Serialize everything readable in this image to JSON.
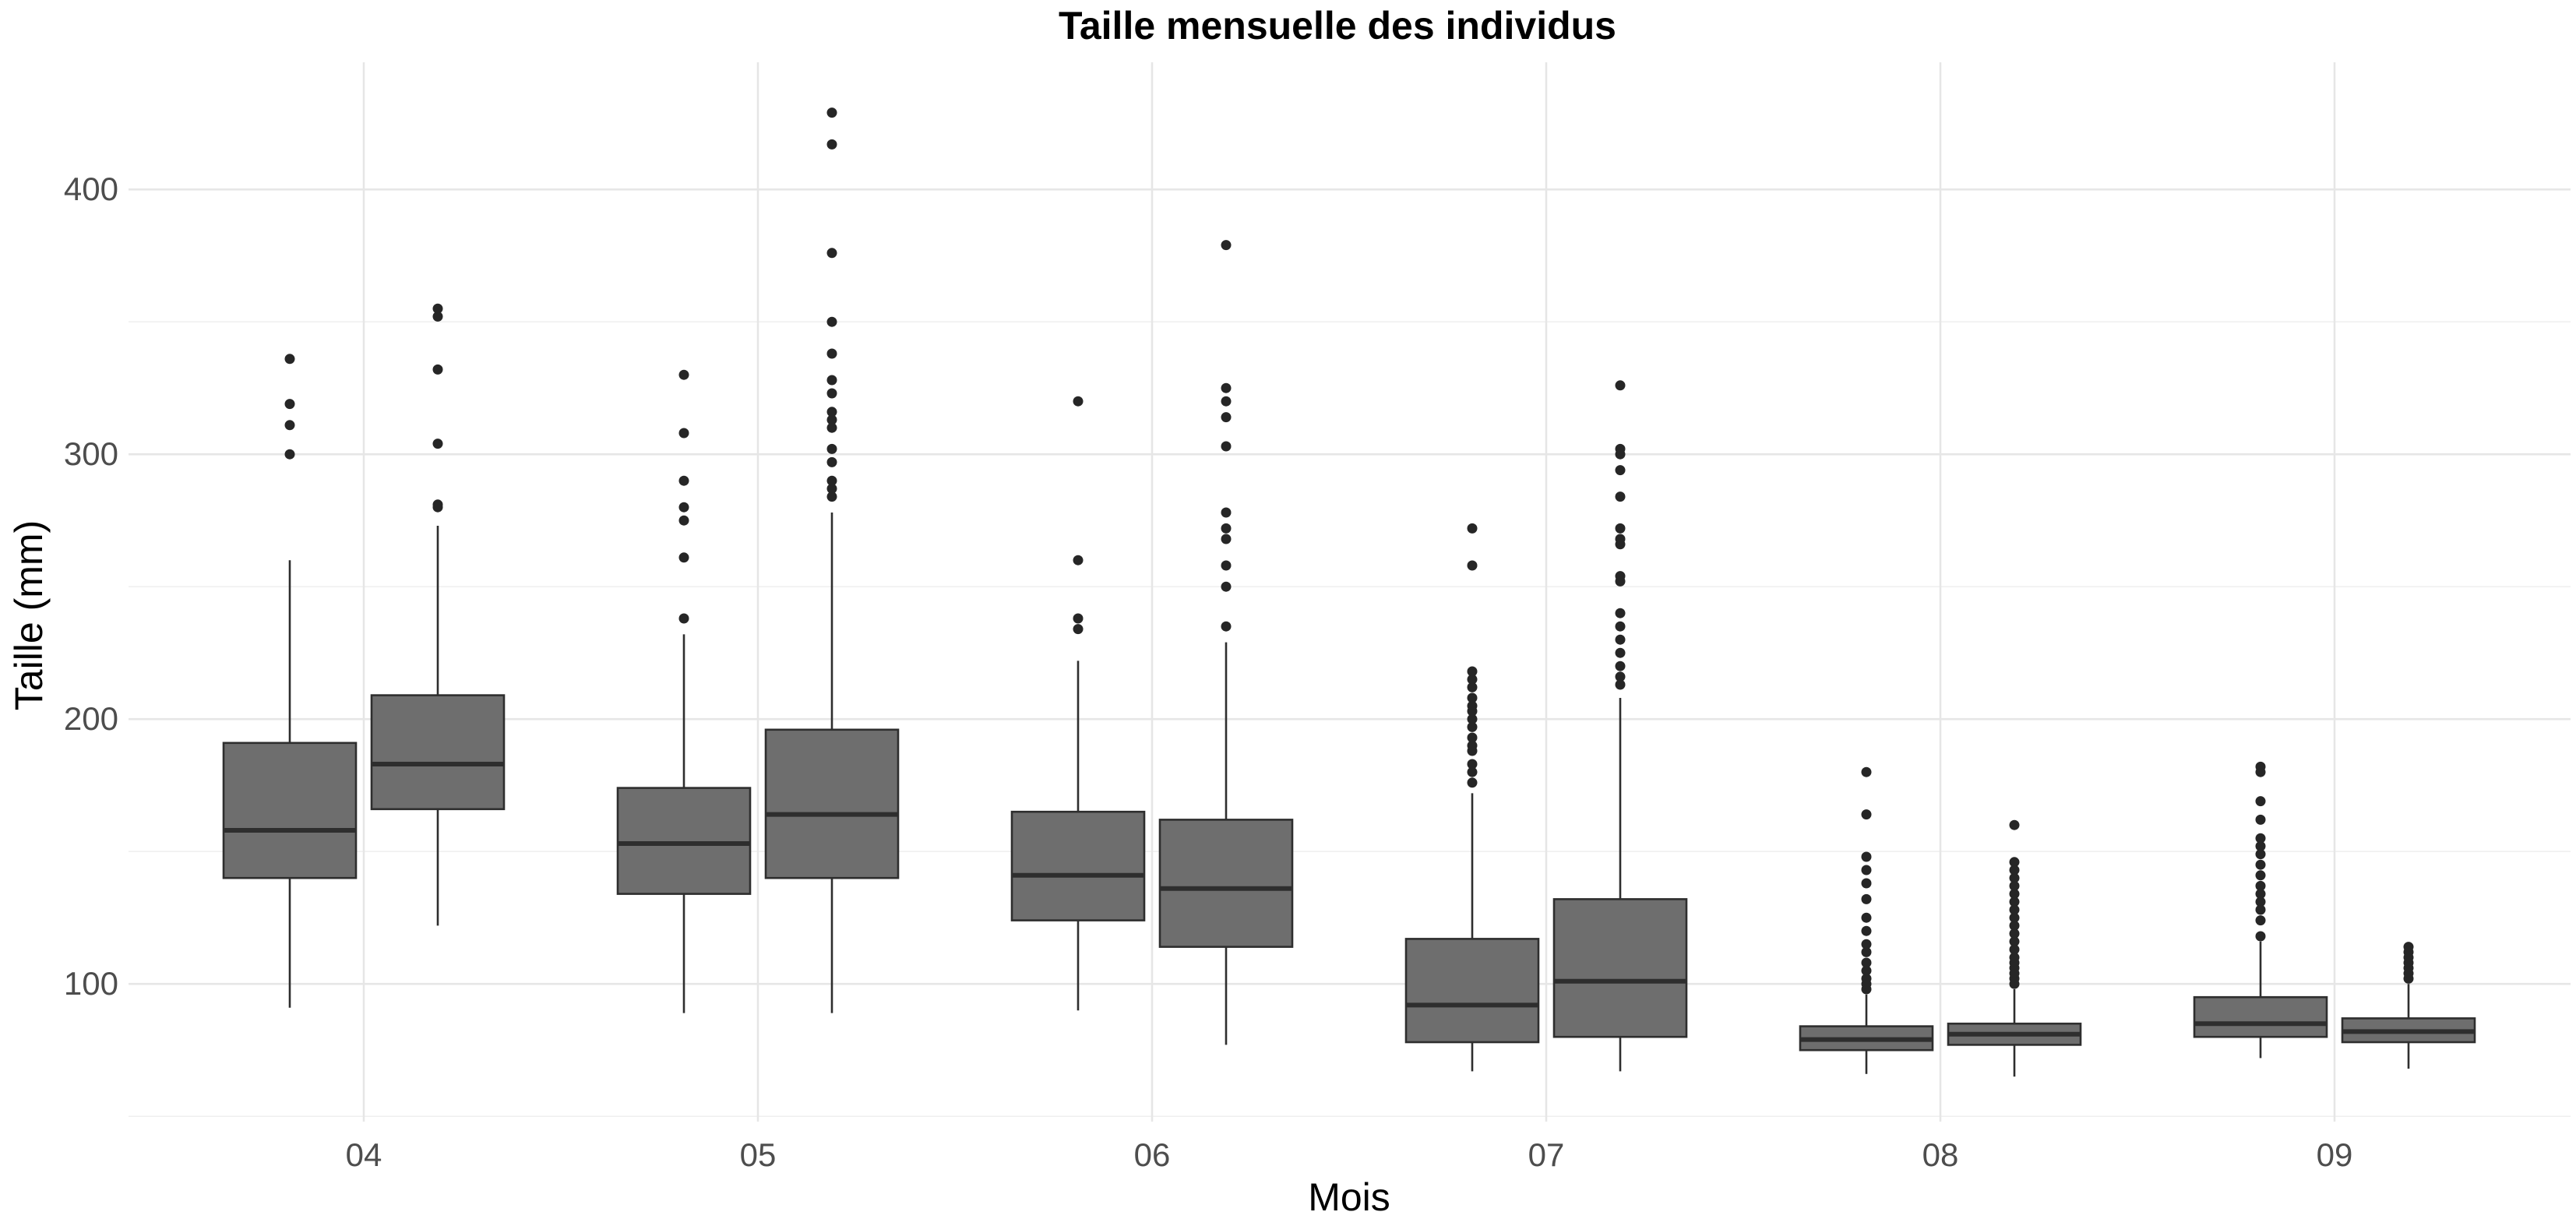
{
  "chart_data": {
    "type": "boxplot",
    "title": "Taille mensuelle des individus",
    "xlabel": "Mois",
    "ylabel": "Taille (mm)",
    "categories": [
      "04",
      "05",
      "06",
      "07",
      "08",
      "09"
    ],
    "ylim": [
      48,
      448
    ],
    "y_ticks": [
      100,
      200,
      300,
      400
    ],
    "grid": true,
    "legend": "none",
    "colors": {
      "box_fill": "#6e6e6e",
      "box_stroke": "#2e2e2e",
      "point": "#262626"
    },
    "boxes": [
      {
        "category": "04",
        "group": 1,
        "min": 91,
        "q1": 140,
        "median": 158,
        "q3": 191,
        "max": 260,
        "outliers": [
          300,
          311,
          319,
          336
        ]
      },
      {
        "category": "04",
        "group": 2,
        "min": 122,
        "q1": 166,
        "median": 183,
        "q3": 209,
        "max": 273,
        "outliers": [
          280,
          281,
          304,
          332,
          352,
          355
        ]
      },
      {
        "category": "05",
        "group": 1,
        "min": 89,
        "q1": 134,
        "median": 153,
        "q3": 174,
        "max": 232,
        "outliers": [
          238,
          261,
          275,
          280,
          290,
          308,
          330
        ]
      },
      {
        "category": "05",
        "group": 2,
        "min": 89,
        "q1": 140,
        "median": 164,
        "q3": 196,
        "max": 278,
        "outliers": [
          284,
          287,
          290,
          297,
          302,
          310,
          313,
          316,
          323,
          328,
          338,
          350,
          376,
          417,
          429
        ]
      },
      {
        "category": "06",
        "group": 1,
        "min": 90,
        "q1": 124,
        "median": 141,
        "q3": 165,
        "max": 222,
        "outliers": [
          234,
          238,
          260,
          320
        ]
      },
      {
        "category": "06",
        "group": 2,
        "min": 77,
        "q1": 114,
        "median": 136,
        "q3": 162,
        "max": 229,
        "outliers": [
          235,
          250,
          258,
          268,
          272,
          278,
          303,
          314,
          320,
          325,
          379
        ]
      },
      {
        "category": "07",
        "group": 1,
        "min": 67,
        "q1": 78,
        "median": 92,
        "q3": 117,
        "max": 172,
        "outliers": [
          176,
          180,
          183,
          188,
          190,
          193,
          197,
          200,
          203,
          205,
          208,
          212,
          215,
          218,
          258,
          272
        ]
      },
      {
        "category": "07",
        "group": 2,
        "min": 67,
        "q1": 80,
        "median": 101,
        "q3": 132,
        "max": 208,
        "outliers": [
          213,
          216,
          220,
          225,
          230,
          235,
          240,
          252,
          254,
          266,
          268,
          272,
          284,
          294,
          300,
          302,
          326
        ]
      },
      {
        "category": "08",
        "group": 1,
        "min": 66,
        "q1": 75,
        "median": 79,
        "q3": 84,
        "max": 96,
        "outliers": [
          98,
          100,
          102,
          105,
          108,
          112,
          115,
          120,
          125,
          132,
          138,
          143,
          148,
          164,
          180
        ]
      },
      {
        "category": "08",
        "group": 2,
        "min": 65,
        "q1": 77,
        "median": 81,
        "q3": 85,
        "max": 98,
        "outliers": [
          100,
          102,
          104,
          106,
          108,
          110,
          113,
          116,
          119,
          122,
          125,
          128,
          131,
          134,
          137,
          140,
          143,
          146,
          160
        ]
      },
      {
        "category": "09",
        "group": 1,
        "min": 72,
        "q1": 80,
        "median": 85,
        "q3": 95,
        "max": 116,
        "outliers": [
          118,
          124,
          128,
          131,
          134,
          137,
          141,
          145,
          149,
          152,
          155,
          162,
          169,
          180,
          182
        ]
      },
      {
        "category": "09",
        "group": 2,
        "min": 68,
        "q1": 78,
        "median": 82,
        "q3": 87,
        "max": 100,
        "outliers": [
          102,
          104,
          106,
          108,
          110,
          112,
          114
        ]
      }
    ]
  }
}
